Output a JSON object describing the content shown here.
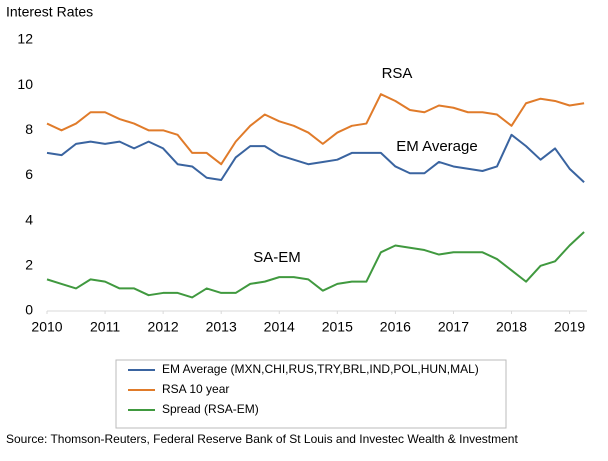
{
  "chart_data": {
    "type": "line",
    "title": "Interest Rates",
    "x": [
      2010,
      2010.25,
      2010.5,
      2010.75,
      2011,
      2011.25,
      2011.5,
      2011.75,
      2012,
      2012.25,
      2012.5,
      2012.75,
      2013,
      2013.25,
      2013.5,
      2013.75,
      2014,
      2014.25,
      2014.5,
      2014.75,
      2015,
      2015.25,
      2015.5,
      2015.75,
      2016,
      2016.25,
      2016.5,
      2016.75,
      2017,
      2017.25,
      2017.5,
      2017.75,
      2018,
      2018.25,
      2018.5,
      2018.75,
      2019,
      2019.25
    ],
    "series": [
      {
        "name": "EM Average (MXN,CHI,RUS,TRY,BRL,IND,POL,HUN,MAL)",
        "color": "#3a64a0",
        "values": [
          7.0,
          6.9,
          7.4,
          7.5,
          7.4,
          7.5,
          7.2,
          7.5,
          7.2,
          6.5,
          6.4,
          5.9,
          5.8,
          6.8,
          7.3,
          7.3,
          6.9,
          6.7,
          6.5,
          6.6,
          6.7,
          7.0,
          7.0,
          7.0,
          6.4,
          6.1,
          6.1,
          6.6,
          6.4,
          6.3,
          6.2,
          6.4,
          7.8,
          7.3,
          6.7,
          7.2,
          6.3,
          5.7
        ]
      },
      {
        "name": "RSA 10 year",
        "color": "#e07b2a",
        "values": [
          8.3,
          8.0,
          8.3,
          8.8,
          8.8,
          8.5,
          8.3,
          8.0,
          8.0,
          7.8,
          7.0,
          7.0,
          6.5,
          7.5,
          8.2,
          8.7,
          8.4,
          8.2,
          7.9,
          7.4,
          7.9,
          8.2,
          8.3,
          9.6,
          9.3,
          8.9,
          8.8,
          9.1,
          9.0,
          8.8,
          8.8,
          8.7,
          8.2,
          9.2,
          9.4,
          9.3,
          9.1,
          9.2
        ]
      },
      {
        "name": "Spread (RSA-EM)",
        "color": "#40993f",
        "values": [
          1.4,
          1.2,
          1.0,
          1.4,
          1.3,
          1.0,
          1.0,
          0.7,
          0.8,
          0.8,
          0.6,
          1.0,
          0.8,
          0.8,
          1.2,
          1.3,
          1.5,
          1.5,
          1.4,
          0.9,
          1.2,
          1.3,
          1.3,
          2.6,
          2.9,
          2.8,
          2.7,
          2.5,
          2.6,
          2.6,
          2.6,
          2.3,
          1.8,
          1.3,
          2.0,
          2.2,
          2.9,
          3.5
        ]
      }
    ],
    "annotations": [
      "RSA",
      "EM Average",
      "SA-EM"
    ],
    "xlim": [
      2010,
      2019.3
    ],
    "xticks": [
      2010,
      2011,
      2012,
      2013,
      2014,
      2015,
      2016,
      2017,
      2018,
      2019
    ],
    "ylim": [
      0,
      12
    ],
    "yticks": [
      0,
      2,
      4,
      6,
      8,
      10,
      12
    ],
    "grid": false,
    "source": "Source: Thomson-Reuters, Federal Reserve Bank of St Louis and Investec Wealth & Investment"
  }
}
